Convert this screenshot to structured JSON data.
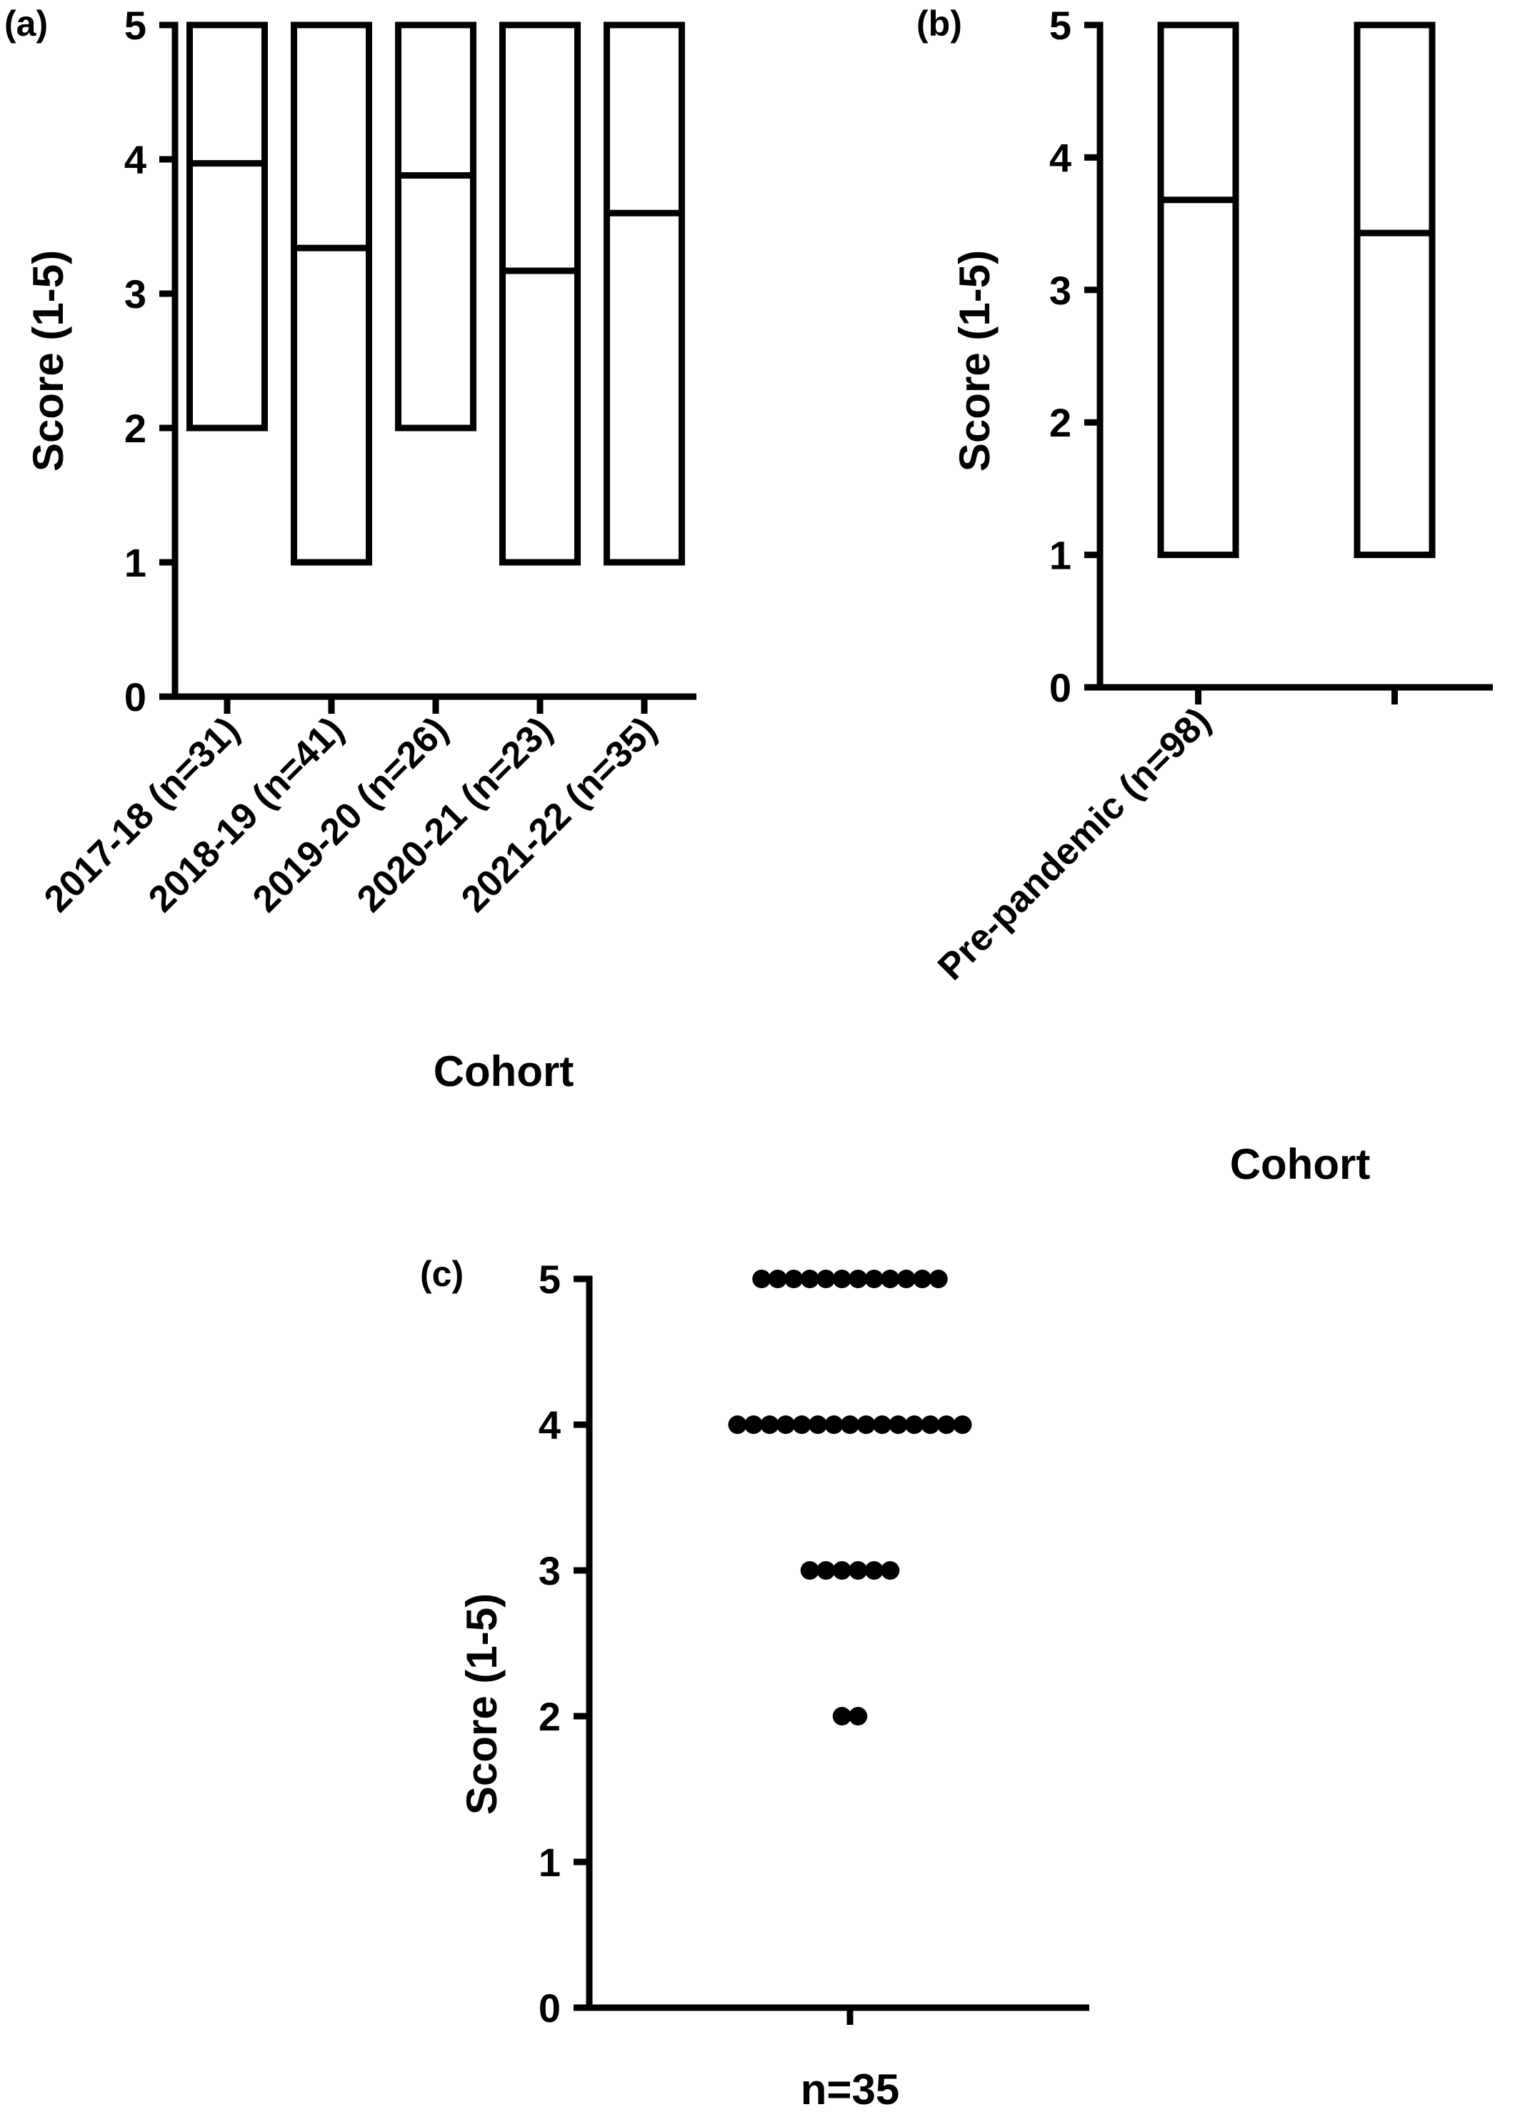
{
  "chart_data": [
    {
      "panel_label": "(a)",
      "type": "box",
      "ylabel": "Score (1-5)",
      "xlabel": "Cohort",
      "ylim": [
        0,
        5
      ],
      "yticks": [
        0,
        1,
        2,
        3,
        4,
        5
      ],
      "categories": [
        "2017-18 (n=31)",
        "2018-19 (n=41)",
        "2019-20 (n=26)",
        "2020-21 (n=23)",
        "2021-22 (n=35)"
      ],
      "boxes": [
        {
          "min": 2,
          "mean": 3.97,
          "max": 5
        },
        {
          "min": 1,
          "mean": 3.34,
          "max": 5
        },
        {
          "min": 2,
          "mean": 3.88,
          "max": 5
        },
        {
          "min": 1,
          "mean": 3.17,
          "max": 5
        },
        {
          "min": 1,
          "mean": 3.6,
          "max": 5
        }
      ]
    },
    {
      "panel_label": "(b)",
      "type": "box",
      "ylabel": "Score (1-5)",
      "xlabel": "Cohort",
      "ylim": [
        0,
        5
      ],
      "yticks": [
        0,
        1,
        2,
        3,
        4,
        5
      ],
      "categories": [
        "Pre-pandemic (n=98)",
        ""
      ],
      "boxes": [
        {
          "min": 1,
          "mean": 3.68,
          "max": 5
        },
        {
          "min": 1,
          "mean": 3.43,
          "max": 5
        }
      ]
    },
    {
      "panel_label": "(c)",
      "type": "scatter",
      "ylabel": "Score (1-5)",
      "xlabel": "n=35",
      "ylim": [
        0,
        5
      ],
      "yticks": [
        0,
        1,
        2,
        3,
        4,
        5
      ],
      "series": [
        {
          "values": [
            5,
            5,
            5,
            5,
            5,
            5,
            5,
            5,
            5,
            5,
            5,
            5,
            4,
            4,
            4,
            4,
            4,
            4,
            4,
            4,
            4,
            4,
            4,
            4,
            4,
            4,
            4,
            3,
            3,
            3,
            3,
            3,
            3,
            2,
            2
          ]
        }
      ]
    }
  ]
}
